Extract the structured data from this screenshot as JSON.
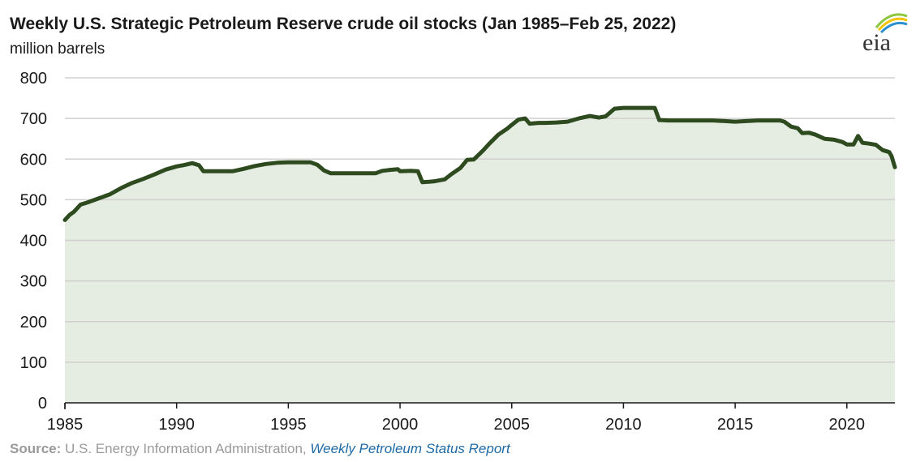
{
  "title": "Weekly U.S. Strategic Petroleum Reserve crude oil stocks (Jan 1985–Feb 25, 2022)",
  "subtitle": "million barrels",
  "logo_text": "eia",
  "source": {
    "label": "Source:",
    "text": " U.S. Energy Information Administration, ",
    "report": "Weekly Petroleum Status Report"
  },
  "colors": {
    "line": "#2e4a1f",
    "fill": "#e5ece1",
    "grid": "#d0d0d0",
    "axis": "#1a1a1a",
    "source_link": "#1f6aa5",
    "logo_arc_green": "#8dc63f",
    "logo_arc_yellow": "#f3c300",
    "logo_arc_blue": "#2b8fd0"
  },
  "chart_data": {
    "type": "area",
    "title": "Weekly U.S. Strategic Petroleum Reserve crude oil stocks (Jan 1985–Feb 25, 2022)",
    "ylabel": "million barrels",
    "xlabel": "",
    "xlim": [
      1985,
      2022.15
    ],
    "ylim": [
      0,
      800
    ],
    "yticks": [
      0,
      100,
      200,
      300,
      400,
      500,
      600,
      700,
      800
    ],
    "xticks": [
      1985,
      1990,
      1995,
      2000,
      2005,
      2010,
      2015,
      2020
    ],
    "grid": true,
    "legend": "none",
    "series": [
      {
        "x": [
          1985.0,
          1985.2,
          1985.4,
          1985.7,
          1986.0,
          1986.5,
          1987.0,
          1987.5,
          1988.0,
          1988.5,
          1989.0,
          1989.5,
          1990.0,
          1990.3,
          1990.7,
          1991.0,
          1991.2,
          1992.0,
          1992.5,
          1993.0,
          1993.5,
          1994.0,
          1994.5,
          1995.0,
          1995.5,
          1996.0,
          1996.3,
          1996.6,
          1996.9,
          1997.2,
          1997.5,
          1998.0,
          1998.5,
          1998.9,
          1999.2,
          1999.5,
          1999.9,
          2000.0,
          2000.5,
          2000.8,
          2001.0,
          2001.3,
          2001.5,
          2002.0,
          2002.3,
          2002.7,
          2003.0,
          2003.3,
          2003.7,
          2004.0,
          2004.4,
          2004.8,
          2005.0,
          2005.3,
          2005.6,
          2005.8,
          2006.2,
          2006.5,
          2007.0,
          2007.5,
          2008.0,
          2008.5,
          2008.9,
          2009.2,
          2009.6,
          2010.0,
          2010.5,
          2011.0,
          2011.4,
          2011.6,
          2012.0,
          2013.0,
          2014.0,
          2015.0,
          2016.0,
          2016.5,
          2017.0,
          2017.2,
          2017.5,
          2017.8,
          2018.0,
          2018.3,
          2018.6,
          2019.0,
          2019.4,
          2019.8,
          2020.0,
          2020.3,
          2020.5,
          2020.7,
          2021.0,
          2021.3,
          2021.6,
          2021.9,
          2022.0,
          2022.15
        ],
        "y": [
          450,
          462,
          470,
          488,
          493,
          503,
          513,
          528,
          541,
          551,
          562,
          574,
          582,
          585,
          590,
          585,
          570,
          570,
          570,
          576,
          583,
          588,
          591,
          592,
          592,
          592,
          586,
          572,
          565,
          565,
          565,
          565,
          565,
          565,
          571,
          573,
          575,
          570,
          571,
          570,
          543,
          544,
          545,
          550,
          563,
          578,
          598,
          599,
          620,
          638,
          660,
          675,
          684,
          697,
          700,
          687,
          689,
          689,
          690,
          692,
          700,
          706,
          702,
          705,
          724,
          726,
          726,
          726,
          726,
          696,
          695,
          695,
          695,
          692,
          695,
          695,
          695,
          692,
          680,
          676,
          664,
          665,
          660,
          650,
          648,
          642,
          636,
          636,
          657,
          640,
          638,
          635,
          622,
          617,
          607,
          580
        ]
      }
    ]
  }
}
